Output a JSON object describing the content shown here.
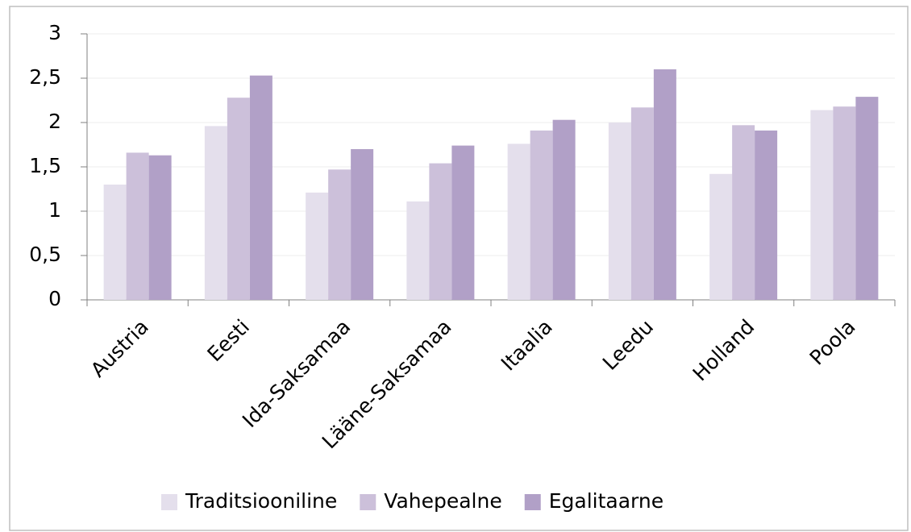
{
  "chart_data": {
    "type": "bar",
    "categories": [
      "Austria",
      "Eesti",
      "Ida-Saksamaa",
      "Lääne-Saksamaa",
      "Itaalia",
      "Leedu",
      "Holland",
      "Poola"
    ],
    "series": [
      {
        "name": "Traditsiooniline",
        "color": "#e4dfec",
        "values": [
          1.3,
          1.96,
          1.21,
          1.11,
          1.76,
          2.0,
          1.42,
          2.14
        ]
      },
      {
        "name": "Vahepealne",
        "color": "#ccc0da",
        "values": [
          1.66,
          2.28,
          1.47,
          1.54,
          1.91,
          2.17,
          1.97,
          2.18
        ]
      },
      {
        "name": "Egalitaarne",
        "color": "#b1a0c7",
        "values": [
          1.63,
          2.53,
          1.7,
          1.74,
          2.03,
          2.6,
          1.91,
          2.29
        ]
      }
    ],
    "ylim": [
      0,
      3
    ],
    "yticks": [
      0,
      {
        "value": 0.5,
        "label": "0,5"
      },
      1,
      {
        "value": 1.5,
        "label": "1,5"
      },
      2,
      {
        "value": 2.5,
        "label": "2,5"
      },
      3
    ],
    "grid": true,
    "legend": "bottom"
  }
}
